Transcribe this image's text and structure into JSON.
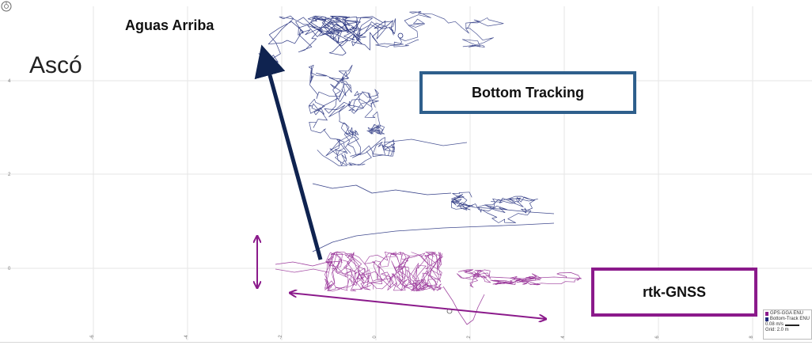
{
  "window": {
    "title": "Ascó"
  },
  "annotations": {
    "upstream_label": "Aguas Arriba",
    "bottom_tracking_label": "Bottom Tracking",
    "rtk_label": "rtk-GNSS"
  },
  "axes": {
    "x_ticks": [
      "-6",
      "-4",
      "-2",
      "0",
      "2",
      "4",
      "6",
      "8"
    ],
    "y_ticks": [
      "4",
      "2",
      "0"
    ]
  },
  "legend": {
    "items": [
      {
        "name": "GPS-GGA ENU",
        "color": "#8b1a8b"
      },
      {
        "name": "Bottom-Track ENU",
        "color": "#1e2a7a"
      }
    ],
    "velocity_scale": "0.08 m/s",
    "grid": "Grid: 2.0 m"
  },
  "colors": {
    "bottom_tracking": "#1e2a7a",
    "rtk": "#8b1a8b",
    "arrow_upstream": "#0f2350",
    "box_bottom_tracking": "#2e5f8c",
    "box_rtk": "#8b1a8b",
    "grid": "#e6e6e6"
  },
  "icons": {
    "corner": "compass-icon"
  }
}
